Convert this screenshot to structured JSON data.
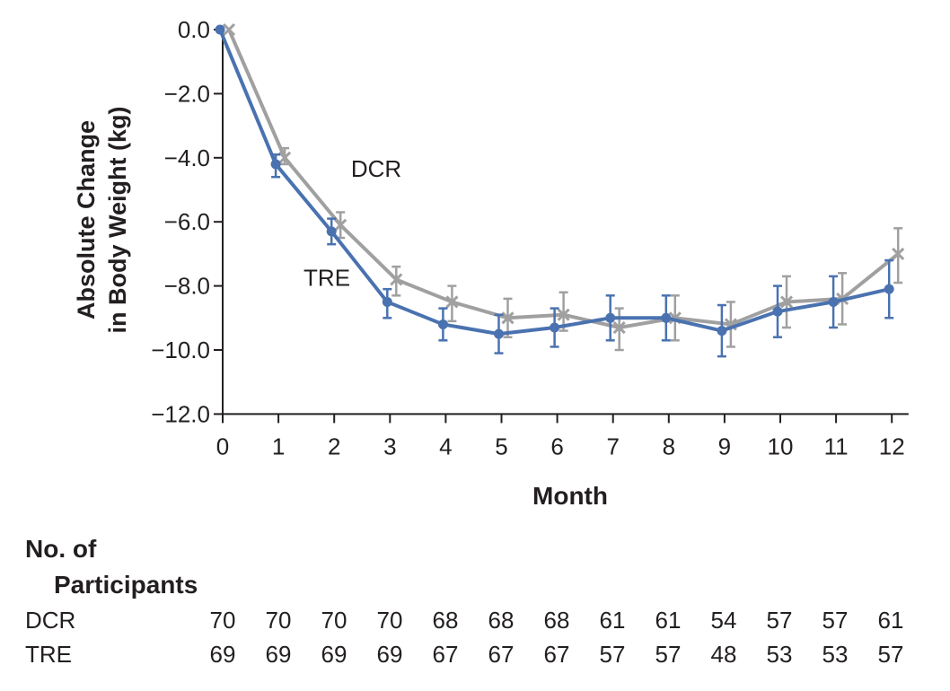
{
  "chart_data": {
    "type": "line",
    "xlabel": "Month",
    "ylabel_lines": [
      "Absolute Change",
      "in Body Weight (kg)"
    ],
    "x": [
      0,
      1,
      2,
      3,
      4,
      5,
      6,
      7,
      8,
      9,
      10,
      11,
      12
    ],
    "x_tick_labels": [
      "0",
      "1",
      "2",
      "3",
      "4",
      "5",
      "6",
      "7",
      "8",
      "9",
      "10",
      "11",
      "12"
    ],
    "xlim": [
      0,
      12.3
    ],
    "ylim": [
      -12.0,
      0.0
    ],
    "y_ticks": [
      0.0,
      -2.0,
      -4.0,
      -6.0,
      -8.0,
      -10.0,
      -12.0
    ],
    "y_tick_labels": [
      "0.0",
      "−2.0",
      "−4.0",
      "−6.0",
      "−8.0",
      "−10.0",
      "−12.0"
    ],
    "grid": false,
    "series": [
      {
        "name": "DCR",
        "color": "#a0a0a0",
        "marker": "x",
        "values": [
          0.0,
          -4.0,
          -6.1,
          -7.8,
          -8.5,
          -9.0,
          -8.9,
          -9.3,
          -9.0,
          -9.2,
          -8.5,
          -8.4,
          -7.0
        ],
        "error_low": [
          0.0,
          -4.2,
          -6.5,
          -8.3,
          -9.1,
          -9.6,
          -9.4,
          -10.0,
          -9.7,
          -9.9,
          -9.3,
          -9.2,
          -7.9
        ],
        "error_high": [
          0.0,
          -3.7,
          -5.7,
          -7.4,
          -8.0,
          -8.4,
          -8.2,
          -8.7,
          -8.3,
          -8.5,
          -7.7,
          -7.6,
          -6.2
        ],
        "label_at": {
          "x": 2.3,
          "y": -4.6
        }
      },
      {
        "name": "TRE",
        "color": "#4a72b0",
        "marker": "o",
        "values": [
          0.0,
          -4.2,
          -6.3,
          -8.5,
          -9.2,
          -9.5,
          -9.3,
          -9.0,
          -9.0,
          -9.4,
          -8.8,
          -8.5,
          -8.1
        ],
        "error_low": [
          0.0,
          -4.6,
          -6.7,
          -9.0,
          -9.7,
          -10.1,
          -9.9,
          -9.7,
          -9.7,
          -10.2,
          -9.6,
          -9.3,
          -9.0
        ],
        "error_high": [
          0.0,
          -3.9,
          -5.9,
          -8.1,
          -8.7,
          -8.9,
          -8.7,
          -8.3,
          -8.3,
          -8.6,
          -8.0,
          -7.7,
          -7.2
        ],
        "label_at": {
          "x": 1.45,
          "y": -8.0
        }
      }
    ]
  },
  "participants": {
    "title_line1": "No. of",
    "title_line2": "Participants",
    "rows": [
      {
        "name": "DCR",
        "values": [
          "70",
          "70",
          "70",
          "70",
          "68",
          "68",
          "68",
          "61",
          "61",
          "54",
          "57",
          "57",
          "61"
        ]
      },
      {
        "name": "TRE",
        "values": [
          "69",
          "69",
          "69",
          "69",
          "67",
          "67",
          "67",
          "57",
          "57",
          "48",
          "53",
          "53",
          "57"
        ]
      }
    ]
  }
}
